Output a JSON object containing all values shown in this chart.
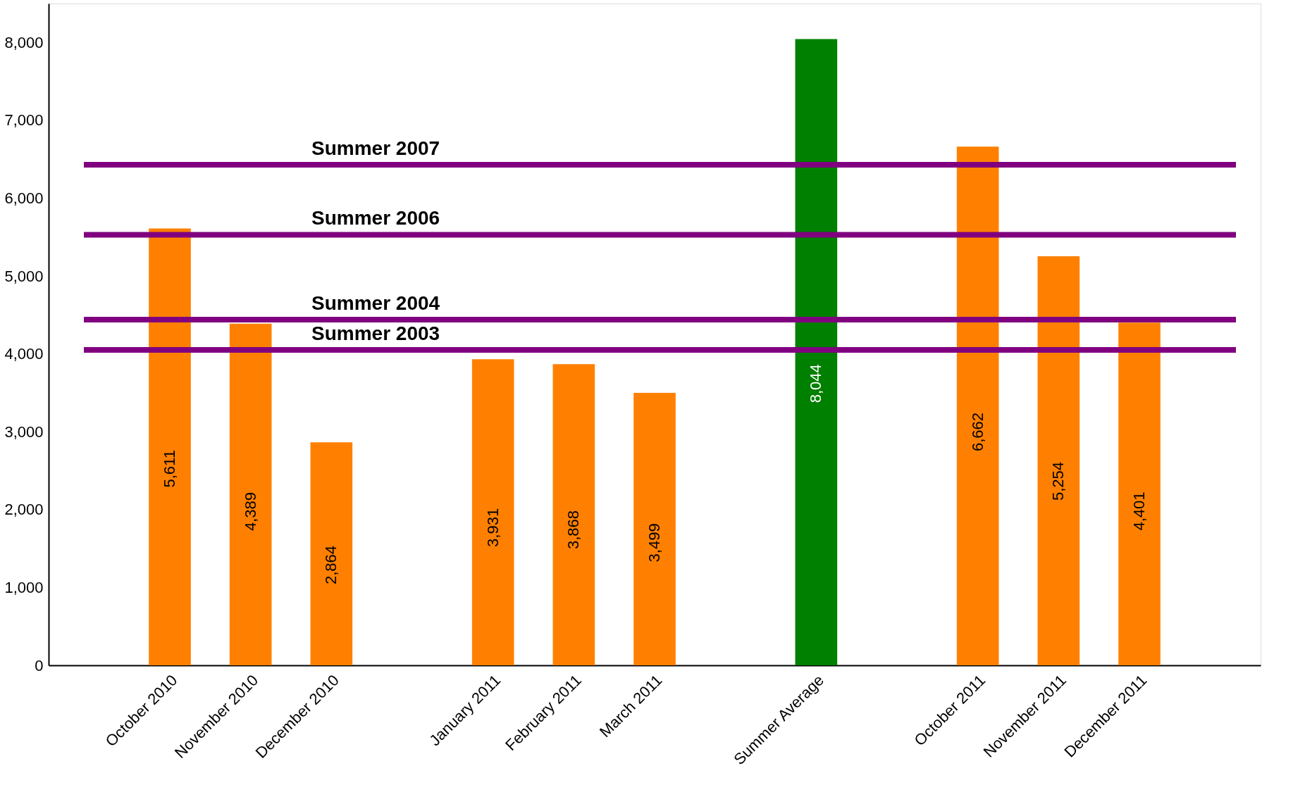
{
  "chart_data": {
    "type": "bar",
    "categories": [
      null,
      "October 2010",
      "November 2010",
      "December 2010",
      null,
      "January 2011",
      "February 2011",
      "March 2011",
      null,
      "Summer Average",
      null,
      "October 2011",
      "November 2011",
      "December 2011",
      null
    ],
    "values": [
      null,
      5611,
      4389,
      2864,
      null,
      3931,
      3868,
      3499,
      null,
      8044,
      null,
      6662,
      5254,
      4401,
      null
    ],
    "colors": [
      "#ff8000",
      "#ff8000",
      "#ff8000",
      "#ff8000",
      "#ff8000",
      "#ff8000",
      "#ff8000",
      "#ff8000",
      "#ff8000",
      "#008000",
      "#ff8000",
      "#ff8000",
      "#ff8000",
      "#ff8000",
      "#ff8000"
    ],
    "value_labels": [
      null,
      "5,611",
      "4,389",
      "2,864",
      null,
      "3,931",
      "3,868",
      "3,499",
      null,
      "8,044",
      null,
      "6,662",
      "5,254",
      "4,401",
      null
    ],
    "ylim": [
      0,
      8500
    ],
    "yticks": [
      0,
      {
        "value": 1000,
        "label": "1,000"
      },
      {
        "value": 2000,
        "label": "2,000"
      },
      {
        "value": 3000,
        "label": "3,000"
      },
      {
        "value": 4000,
        "label": "4,000"
      },
      {
        "value": 5000,
        "label": "5,000"
      },
      {
        "value": 6000,
        "label": "6,000"
      },
      {
        "value": 7000,
        "label": "7,000"
      },
      {
        "value": 8000,
        "label": "8,000"
      }
    ],
    "grid": false,
    "ref_lines": [
      {
        "axis": "y",
        "value": 6430,
        "label": "Summer 2007",
        "color": "#800080"
      },
      {
        "axis": "y",
        "value": 5530,
        "label": "Summer 2006",
        "color": "#800080"
      },
      {
        "axis": "y",
        "value": 4440,
        "label": "Summer 2004",
        "color": "#800080"
      },
      {
        "axis": "y",
        "value": 4050,
        "label": "Summer 2003",
        "color": "#800080"
      }
    ]
  }
}
